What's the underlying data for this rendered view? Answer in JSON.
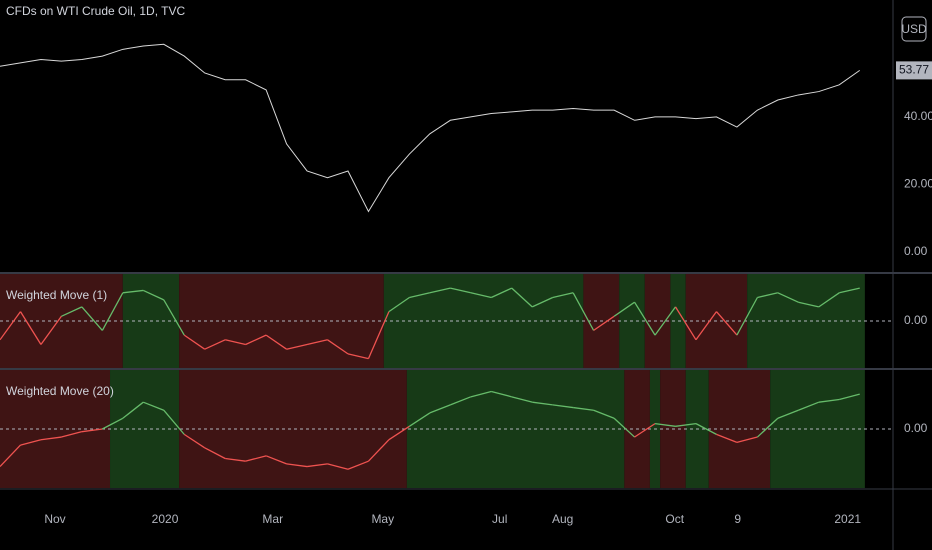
{
  "chart_data": [
    {
      "type": "line",
      "title": "CFDs on WTI Crude Oil, 1D, TVC",
      "currency": "USD",
      "color": "#d9d9d9",
      "x": [
        0,
        8,
        16,
        24,
        32,
        40,
        48,
        56,
        64,
        72,
        80,
        88,
        96,
        104,
        112,
        120,
        128,
        136,
        144,
        152,
        160,
        168,
        176,
        184,
        192,
        200,
        208,
        216,
        224,
        232,
        240,
        248,
        256,
        264,
        272,
        280,
        288,
        296,
        304,
        312,
        320,
        328,
        336
      ],
      "values": [
        55,
        56,
        57,
        56.5,
        57,
        58,
        60,
        61,
        61.5,
        58,
        53,
        51,
        51,
        48,
        32,
        24,
        22,
        24,
        12,
        22,
        29,
        35,
        39,
        40,
        41,
        41.5,
        42,
        42,
        42.5,
        42,
        42,
        39,
        40,
        40,
        39.5,
        40,
        37,
        42,
        45,
        46.5,
        47.5,
        49.5,
        53.77
      ],
      "xlim": [
        0,
        349
      ],
      "ylim": [
        -5.9,
        74.6
      ],
      "yticks": [
        {
          "value": 0,
          "label": "0.00"
        },
        {
          "value": 20,
          "label": "20.00"
        },
        {
          "value": 40,
          "label": "40.00"
        }
      ]
    },
    {
      "type": "line",
      "title": "Weighted Move (1)",
      "up_color": "#66bb6a",
      "down_color": "#ef5350",
      "x": [
        0,
        8,
        16,
        24,
        32,
        40,
        48,
        56,
        64,
        72,
        80,
        88,
        96,
        104,
        112,
        120,
        128,
        136,
        144,
        152,
        160,
        168,
        176,
        184,
        192,
        200,
        208,
        216,
        224,
        232,
        240,
        248,
        256,
        264,
        272,
        280,
        288,
        296,
        304,
        312,
        320,
        328,
        336
      ],
      "values": [
        -0.4,
        0.2,
        -0.5,
        0.1,
        0.3,
        -0.2,
        0.6,
        0.65,
        0.45,
        -0.3,
        -0.6,
        -0.4,
        -0.5,
        -0.3,
        -0.6,
        -0.5,
        -0.4,
        -0.7,
        -0.8,
        0.2,
        0.5,
        0.6,
        0.7,
        0.6,
        0.5,
        0.7,
        0.3,
        0.5,
        0.6,
        -0.2,
        0.1,
        0.4,
        -0.3,
        0.3,
        -0.4,
        0.2,
        -0.3,
        0.5,
        0.6,
        0.4,
        0.3,
        0.6,
        0.7
      ],
      "bands": [
        {
          "from": 0,
          "to": 48,
          "color": "#3f1414"
        },
        {
          "from": 48,
          "to": 70,
          "color": "#173a17"
        },
        {
          "from": 70,
          "to": 150,
          "color": "#3f1414"
        },
        {
          "from": 150,
          "to": 228,
          "color": "#173a17"
        },
        {
          "from": 228,
          "to": 242,
          "color": "#3f1414"
        },
        {
          "from": 242,
          "to": 252,
          "color": "#173a17"
        },
        {
          "from": 252,
          "to": 262,
          "color": "#3f1414"
        },
        {
          "from": 262,
          "to": 268,
          "color": "#173a17"
        },
        {
          "from": 268,
          "to": 292,
          "color": "#3f1414"
        },
        {
          "from": 292,
          "to": 338,
          "color": "#173a17"
        }
      ],
      "xlim": [
        0,
        349
      ],
      "ylim": [
        -1,
        1
      ],
      "yticks": [
        {
          "value": 0,
          "label": "0.00"
        }
      ]
    },
    {
      "type": "line",
      "title": "Weighted Move (20)",
      "up_color": "#66bb6a",
      "down_color": "#ef5350",
      "x": [
        0,
        8,
        16,
        24,
        32,
        40,
        48,
        56,
        64,
        72,
        80,
        88,
        96,
        104,
        112,
        120,
        128,
        136,
        144,
        152,
        160,
        168,
        176,
        184,
        192,
        200,
        208,
        216,
        224,
        232,
        240,
        248,
        256,
        264,
        272,
        280,
        288,
        296,
        304,
        312,
        320,
        328,
        336
      ],
      "values": [
        -0.7,
        -0.3,
        -0.2,
        -0.15,
        -0.05,
        0,
        0.2,
        0.5,
        0.35,
        -0.1,
        -0.35,
        -0.55,
        -0.6,
        -0.5,
        -0.65,
        -0.7,
        -0.65,
        -0.75,
        -0.6,
        -0.2,
        0.05,
        0.3,
        0.45,
        0.6,
        0.7,
        0.6,
        0.5,
        0.45,
        0.4,
        0.35,
        0.2,
        -0.15,
        0.1,
        0.05,
        0.1,
        -0.1,
        -0.25,
        -0.15,
        0.2,
        0.35,
        0.5,
        0.55,
        0.65
      ],
      "bands": [
        {
          "from": 0,
          "to": 43,
          "color": "#3f1414"
        },
        {
          "from": 43,
          "to": 70,
          "color": "#173a17"
        },
        {
          "from": 70,
          "to": 159,
          "color": "#3f1414"
        },
        {
          "from": 159,
          "to": 244,
          "color": "#173a17"
        },
        {
          "from": 244,
          "to": 254,
          "color": "#3f1414"
        },
        {
          "from": 254,
          "to": 258,
          "color": "#173a17"
        },
        {
          "from": 258,
          "to": 268,
          "color": "#3f1414"
        },
        {
          "from": 268,
          "to": 277,
          "color": "#173a17"
        },
        {
          "from": 277,
          "to": 301,
          "color": "#3f1414"
        },
        {
          "from": 301,
          "to": 338,
          "color": "#173a17"
        }
      ],
      "xlim": [
        0,
        349
      ],
      "ylim": [
        -1.1,
        1.1
      ],
      "yticks": [
        {
          "value": 0,
          "label": "0.00"
        }
      ],
      "xticks": [
        {
          "value": 21.5,
          "label": "Nov"
        },
        {
          "value": 64.5,
          "label": "2020"
        },
        {
          "value": 106.6,
          "label": "Mar"
        },
        {
          "value": 149.6,
          "label": "May"
        },
        {
          "value": 195.3,
          "label": "Jul"
        },
        {
          "value": 219.9,
          "label": "Aug"
        },
        {
          "value": 263.7,
          "label": "Oct"
        },
        {
          "value": 288.3,
          "label": "9"
        },
        {
          "value": 331.3,
          "label": "2021"
        }
      ]
    }
  ]
}
